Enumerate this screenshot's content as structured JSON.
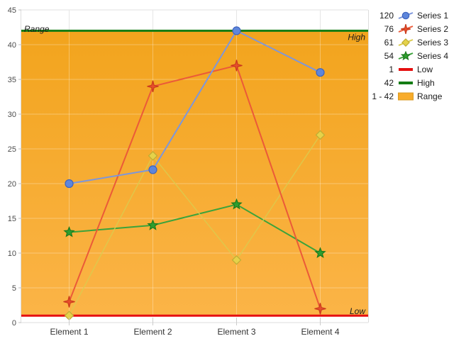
{
  "chart_data": {
    "type": "line",
    "title": "",
    "categories": [
      "Element 1",
      "Element 2",
      "Element 3",
      "Element 4"
    ],
    "series": [
      {
        "name": "Series 1",
        "values": [
          20,
          22,
          42,
          36
        ],
        "legend_value": "120",
        "line_color": "#7C96DC",
        "marker": "circle",
        "marker_fill": "#5E86DB",
        "marker_stroke": "#3D63BE"
      },
      {
        "name": "Series 2",
        "values": [
          3,
          34,
          37,
          2
        ],
        "legend_value": "76",
        "line_color": "#EB5A38",
        "marker": "star4",
        "marker_fill": "#E94F2C",
        "marker_stroke": "#C93A1C"
      },
      {
        "name": "Series 3",
        "values": [
          1,
          24,
          9,
          27
        ],
        "legend_value": "61",
        "line_color": "#DBCB4D",
        "marker": "diamond",
        "marker_fill": "#E5D24A",
        "marker_stroke": "#BFAD34"
      },
      {
        "name": "Series 4",
        "values": [
          13,
          14,
          17,
          10
        ],
        "legend_value": "54",
        "line_color": "#3BA33B",
        "marker": "star5",
        "marker_fill": "#2E9E2E",
        "marker_stroke": "#1C7A1C"
      }
    ],
    "reference_lines": [
      {
        "name": "Low",
        "value": 1,
        "legend_value": "1",
        "color": "#E51010",
        "label": "Low"
      },
      {
        "name": "High",
        "value": 42,
        "legend_value": "42",
        "color": "#147C14",
        "label": "High"
      }
    ],
    "range_band": {
      "name": "Range",
      "from": 1,
      "to": 42,
      "legend_value": "1 - 42",
      "label": "Range",
      "color_top": "#F2A41D",
      "color_bottom": "#FBB447",
      "swatch_fill": "#F8AC2B",
      "swatch_border": "#D89B26"
    },
    "y_axis": {
      "min": 0,
      "max": 45,
      "step": 5
    },
    "grid": true,
    "legend_position": "right",
    "background": "#FFFFFF"
  }
}
